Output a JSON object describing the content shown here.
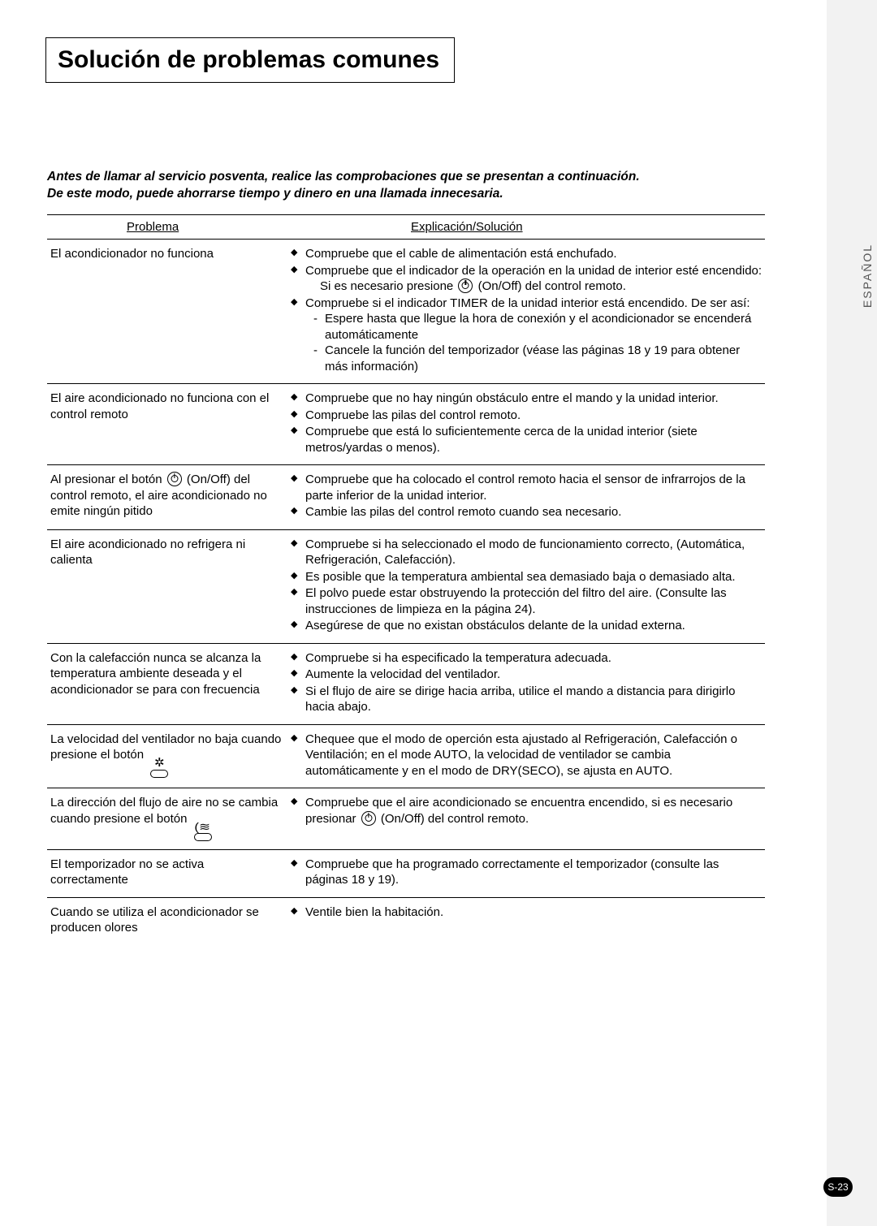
{
  "title": "Solución de problemas comunes",
  "intro_line1": "Antes de llamar al servicio posventa, realice las comprobaciones que se presentan a continuación.",
  "intro_line2": "De este modo, puede ahorrarse tiempo y dinero en una llamada innecesaria.",
  "side_language": "ESPAÑOL",
  "page_number": "S-23",
  "headers": {
    "problem": "Problema",
    "solution": "Explicación/Solución"
  },
  "rows": [
    {
      "problem_html": "El acondicionador no funciona",
      "solutions": [
        {
          "text": "Compruebe que el cable de alimentación está enchufado."
        },
        {
          "text": "Compruebe que el indicador de la operación en la unidad de interior esté encendido:",
          "after_html": "Si es necesario presione <span class=\"pwr-icon\" data-name=\"power-icon\" data-interactable=\"false\"></span> (On/Off) del control remoto."
        },
        {
          "text": "Compruebe si el indicador TIMER de la unidad interior está encendido. De ser así:",
          "sub": [
            "Espere hasta que llegue la hora de conexión y el acondicionador se encenderá automáticamente",
            "Cancele la función del temporizador (véase las páginas 18 y 19 para obtener más información)"
          ]
        }
      ]
    },
    {
      "problem_html": "El aire acondicionado no funciona con el control remoto",
      "solutions": [
        {
          "text": "Compruebe que no hay ningún obstáculo entre el mando y la unidad interior."
        },
        {
          "text": "Compruebe las pilas del control remoto."
        },
        {
          "text": "Compruebe que está lo suficientemente cerca de la unidad interior (siete metros/yardas o menos)."
        }
      ]
    },
    {
      "problem_html": "Al presionar el botón <span class=\"pwr-icon\" data-name=\"power-icon\" data-interactable=\"false\"></span> (On/Off) del control remoto, el aire acondicionado no emite ningún pitido",
      "solutions": [
        {
          "text": "Compruebe que ha colocado el control remoto hacia el sensor de infrarrojos de la parte inferior de la unidad interior."
        },
        {
          "text": "Cambie las pilas del control remoto cuando sea necesario."
        }
      ]
    },
    {
      "problem_html": "El aire acondicionado no refrigera ni calienta",
      "solutions": [
        {
          "text": "Compruebe si ha seleccionado el modo de funcionamiento correcto, (Automática, Refrigeración, Calefacción)."
        },
        {
          "text": "Es posible que la temperatura ambiental sea demasiado baja o demasiado alta."
        },
        {
          "text": "El polvo puede estar obstruyendo la protección del filtro del aire. (Consulte las instrucciones de limpieza en la página 24)."
        },
        {
          "text": "Asegúrese de que no existan obstáculos delante de la unidad externa."
        }
      ]
    },
    {
      "problem_html": "Con la calefacción nunca se alcanza la temperatura ambiente deseada y el acondicionador se para con frecuencia",
      "solutions": [
        {
          "text": "Compruebe si ha especificado la temperatura adecuada."
        },
        {
          "text": "Aumente la velocidad del ventilador."
        },
        {
          "text": "Si el flujo de aire se dirige hacia arriba, utilice el mando a distancia para dirigirlo hacia abajo."
        }
      ]
    },
    {
      "problem_html": "La velocidad del ventilador no baja cuando presione el botón <span class=\"fan-icon\" data-name=\"fan-button-icon\" data-interactable=\"false\"><span class=\"g\">✲</span><span class=\"btn\"></span></span>",
      "solutions": [
        {
          "text": "Chequee que el modo de operción esta ajustado al Refrigeración, Calefacción o Ventilación; en el mode AUTO, la velocidad de ventilador se cambia automáticamente y en el modo de DRY(SECO), se ajusta en AUTO."
        }
      ]
    },
    {
      "problem_html": "La dirección del flujo de aire no se cambia cuando presione el botón <span class=\"swing-icon\" data-name=\"swing-button-icon\" data-interactable=\"false\"><span class=\"g\">(≋</span><span class=\"btn\"></span></span>",
      "solutions": [
        {
          "text_html": "Compruebe que el aire acondicionado se encuentra encendido, si es necesario presionar <span class=\"pwr-icon\" data-name=\"power-icon\" data-interactable=\"false\"></span> (On/Off) del control remoto."
        }
      ]
    },
    {
      "problem_html": "El temporizador no se activa correctamente",
      "solutions": [
        {
          "text": "Compruebe que ha programado correctamente el temporizador (consulte las páginas 18 y 19)."
        }
      ]
    },
    {
      "problem_html": "Cuando se utiliza el acondicionador se producen olores",
      "solutions": [
        {
          "text": "Ventile bien la habitación."
        }
      ]
    }
  ]
}
